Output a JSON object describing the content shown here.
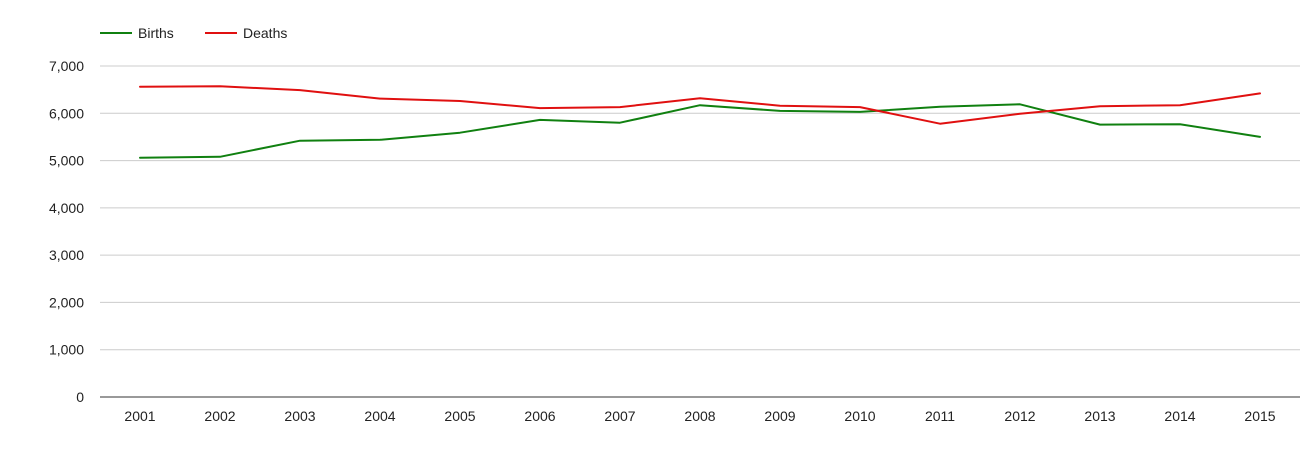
{
  "chart_data": {
    "type": "line",
    "title": "",
    "xlabel": "",
    "ylabel": "",
    "categories": [
      "2001",
      "2002",
      "2003",
      "2004",
      "2005",
      "2006",
      "2007",
      "2008",
      "2009",
      "2010",
      "2011",
      "2012",
      "2013",
      "2014",
      "2015"
    ],
    "ylim": [
      0,
      7000
    ],
    "yticks": [
      0,
      1000,
      2000,
      3000,
      4000,
      5000,
      6000,
      7000
    ],
    "ytick_labels": [
      "0",
      "1,000",
      "2,000",
      "3,000",
      "4,000",
      "5,000",
      "6,000",
      "7,000"
    ],
    "grid": true,
    "legend_position": "top-left",
    "series": [
      {
        "name": "Births",
        "color": "#108010",
        "values": [
          5060,
          5080,
          5420,
          5440,
          5590,
          5860,
          5800,
          6170,
          6050,
          6030,
          6140,
          6190,
          5760,
          5770,
          5500
        ]
      },
      {
        "name": "Deaths",
        "color": "#e01010",
        "values": [
          6560,
          6570,
          6490,
          6310,
          6260,
          6110,
          6130,
          6320,
          6160,
          6130,
          5780,
          5990,
          6150,
          6170,
          6420
        ]
      }
    ]
  }
}
